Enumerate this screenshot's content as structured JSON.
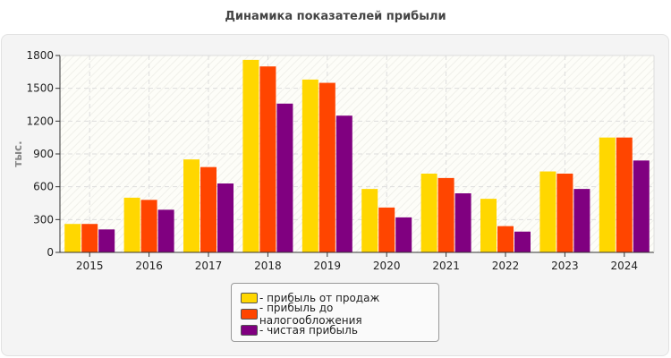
{
  "chart_data": {
    "type": "bar",
    "title": "Динамика показателей прибыли",
    "ylabel": "тыс.",
    "xlabel": "",
    "ylim": [
      0,
      1800
    ],
    "yticks": [
      0,
      300,
      600,
      900,
      1200,
      1500,
      1800
    ],
    "grid": true,
    "legend_position": "bottom",
    "categories": [
      "2015",
      "2016",
      "2017",
      "2018",
      "2019",
      "2020",
      "2021",
      "2022",
      "2023",
      "2024"
    ],
    "series": [
      {
        "name": "- прибыль от продаж",
        "color": "#FFD700",
        "values": [
          260,
          500,
          850,
          1760,
          1580,
          580,
          720,
          490,
          740,
          1050
        ]
      },
      {
        "name": "- прибыль до налогообложения",
        "color": "#FF4500",
        "values": [
          260,
          480,
          780,
          1700,
          1550,
          410,
          680,
          240,
          720,
          1050
        ]
      },
      {
        "name": "- чистая прибыль",
        "color": "#800080",
        "values": [
          210,
          390,
          630,
          1360,
          1250,
          320,
          540,
          190,
          580,
          840
        ]
      }
    ]
  }
}
